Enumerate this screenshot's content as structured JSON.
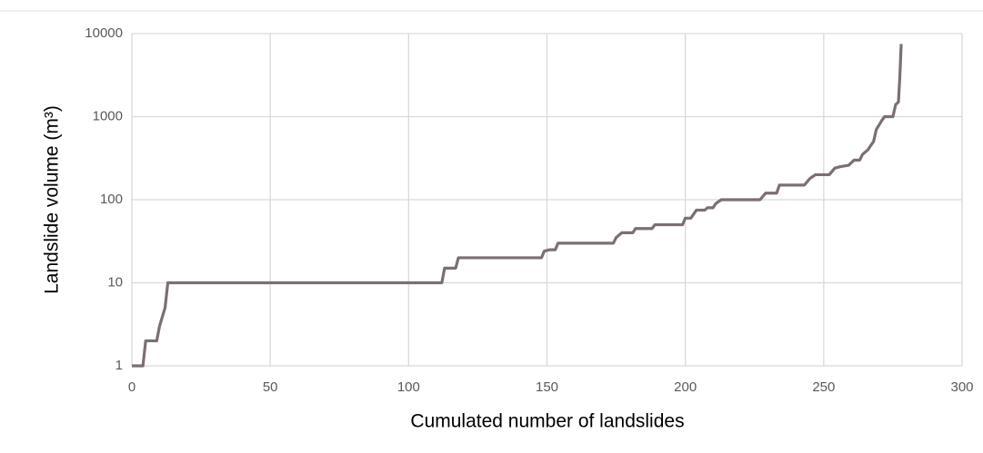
{
  "chart_data": {
    "type": "line",
    "xlabel": "Cumulated number of landslides",
    "ylabel": "Landslide volume (m³)",
    "x": [
      0,
      4,
      5,
      9,
      10,
      12,
      13,
      112,
      113,
      117,
      118,
      148,
      149,
      151,
      153,
      154,
      174,
      175,
      177,
      181,
      182,
      188,
      189,
      199,
      200,
      202,
      204,
      207,
      208,
      210,
      211,
      213,
      227,
      229,
      233,
      234,
      243,
      245,
      247,
      252,
      254,
      256,
      259,
      261,
      263,
      264,
      266,
      267,
      268,
      269,
      271,
      272,
      275,
      276,
      277,
      277.5,
      278
    ],
    "series": [
      {
        "color": "#7b6f71",
        "values": [
          1,
          1,
          2,
          2,
          3,
          5,
          10,
          10,
          15,
          15,
          20,
          20,
          24,
          25,
          25,
          30,
          30,
          35,
          40,
          40,
          45,
          45,
          50,
          50,
          60,
          60,
          75,
          75,
          80,
          80,
          90,
          100,
          100,
          120,
          120,
          150,
          150,
          180,
          200,
          200,
          240,
          250,
          260,
          300,
          300,
          350,
          400,
          450,
          500,
          700,
          900,
          1000,
          1000,
          1400,
          1500,
          3000,
          7500
        ]
      }
    ],
    "xlim": [
      0,
      300
    ],
    "xticks": [
      0,
      50,
      100,
      150,
      200,
      250,
      300
    ],
    "ylim": [
      1,
      10000
    ],
    "yticks": [
      1,
      10,
      100,
      1000,
      10000
    ],
    "log_y": true,
    "grid": true
  }
}
